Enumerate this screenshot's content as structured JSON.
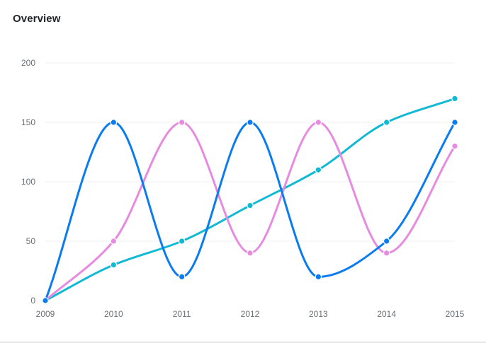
{
  "card": {
    "title": "Overview"
  },
  "chart_data": {
    "type": "line",
    "title": "Overview",
    "xlabel": "",
    "ylabel": "",
    "x": [
      "2009",
      "2010",
      "2011",
      "2012",
      "2013",
      "2014",
      "2015"
    ],
    "ylim": [
      0,
      200
    ],
    "yticks": [
      0,
      50,
      100,
      150,
      200
    ],
    "grid": true,
    "legend": "none",
    "curve": "smooth",
    "series": [
      {
        "color": "#0a7cf0",
        "values": [
          0,
          150,
          20,
          150,
          20,
          50,
          150
        ]
      },
      {
        "color": "#e78be0",
        "values": [
          0,
          50,
          150,
          40,
          150,
          40,
          130
        ]
      },
      {
        "color": "#11b9d4",
        "values": [
          0,
          30,
          50,
          80,
          110,
          150,
          170
        ]
      }
    ]
  }
}
